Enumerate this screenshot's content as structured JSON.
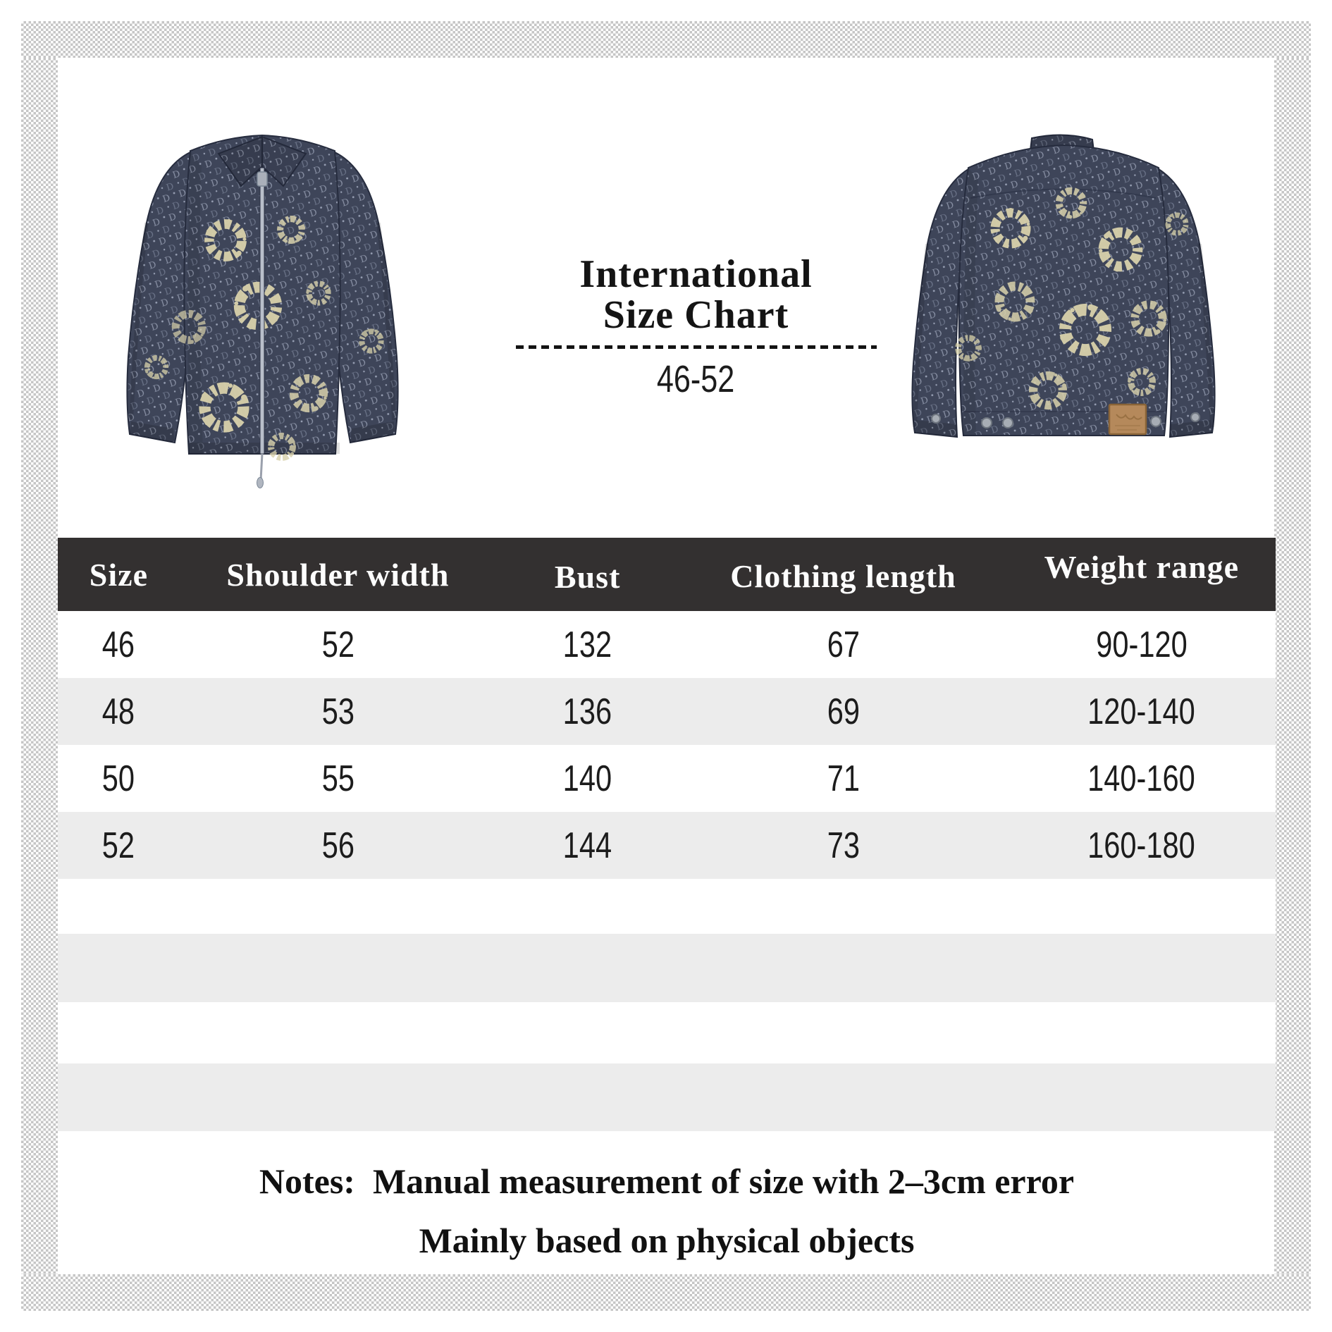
{
  "header": {
    "title_line1": "International",
    "title_line2": "Size Chart",
    "size_range": "46-52"
  },
  "table": {
    "columns": [
      "Size",
      "Shoulder width",
      "Bust",
      "Clothing length",
      "Weight range"
    ],
    "rows": [
      [
        "46",
        "52",
        "132",
        "67",
        "90-120"
      ],
      [
        "48",
        "53",
        "136",
        "69",
        "120-140"
      ],
      [
        "50",
        "55",
        "140",
        "71",
        "140-160"
      ],
      [
        "52",
        "56",
        "144",
        "73",
        "160-180"
      ]
    ],
    "empty_row_count": 4
  },
  "notes": {
    "line1": "Notes:  Manual measurement of size with 2–3cm error",
    "line2": "Mainly based on physical objects"
  },
  "colors": {
    "header_bg": "#333030",
    "header_text": "#fdfdfd",
    "row_alt_bg": "#ececec",
    "text": "#1c1c1c",
    "denim_base": "#3e4559",
    "monogram": "#929aae",
    "wreath_cream": "#d8d1ab",
    "label_tan": "#b5895b"
  }
}
